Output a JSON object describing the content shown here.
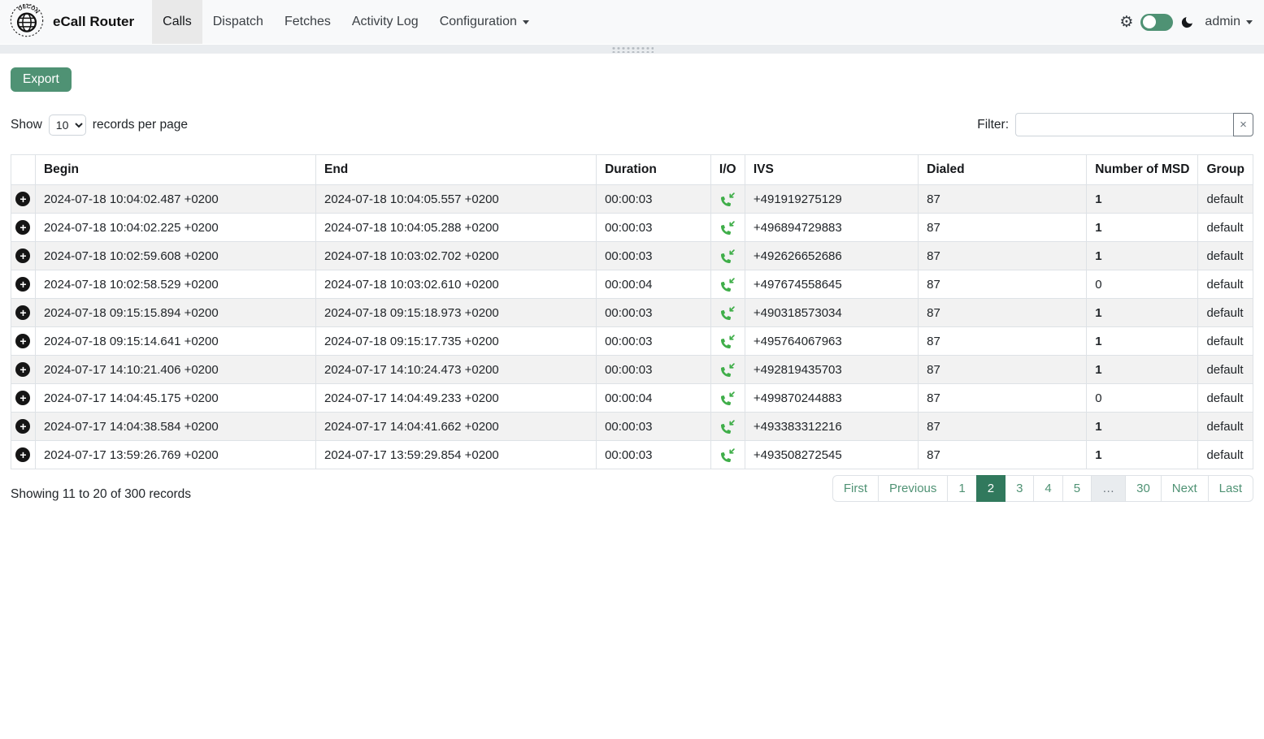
{
  "colors": {
    "accent": "#4f9274",
    "accent_dark": "#31795d",
    "phone_green": "#3fae49"
  },
  "navbar": {
    "brand": "eCall Router",
    "items": [
      {
        "label": "Calls",
        "active": true,
        "dropdown": false
      },
      {
        "label": "Dispatch",
        "active": false,
        "dropdown": false
      },
      {
        "label": "Fetches",
        "active": false,
        "dropdown": false
      },
      {
        "label": "Activity Log",
        "active": false,
        "dropdown": false
      },
      {
        "label": "Configuration",
        "active": false,
        "dropdown": true
      }
    ],
    "user": "admin"
  },
  "toolbar": {
    "export_label": "Export"
  },
  "controls": {
    "show_label": "Show",
    "page_size_selected": "10",
    "records_per_page_label": "records per page",
    "filter_label": "Filter:",
    "filter_value": "",
    "clear_symbol": "×"
  },
  "table": {
    "columns": [
      "",
      "Begin",
      "End",
      "Duration",
      "I/O",
      "IVS",
      "Dialed",
      "Number of MSD",
      "Group"
    ],
    "rows": [
      {
        "begin": "2024-07-18 10:04:02.487 +0200",
        "end": "2024-07-18 10:04:05.557 +0200",
        "duration": "00:00:03",
        "io": "incoming",
        "ivs": "+491919275129",
        "dialed": "87",
        "msd": "1",
        "msd_bold": true,
        "group": "default"
      },
      {
        "begin": "2024-07-18 10:04:02.225 +0200",
        "end": "2024-07-18 10:04:05.288 +0200",
        "duration": "00:00:03",
        "io": "incoming",
        "ivs": "+496894729883",
        "dialed": "87",
        "msd": "1",
        "msd_bold": true,
        "group": "default"
      },
      {
        "begin": "2024-07-18 10:02:59.608 +0200",
        "end": "2024-07-18 10:03:02.702 +0200",
        "duration": "00:00:03",
        "io": "incoming",
        "ivs": "+492626652686",
        "dialed": "87",
        "msd": "1",
        "msd_bold": true,
        "group": "default"
      },
      {
        "begin": "2024-07-18 10:02:58.529 +0200",
        "end": "2024-07-18 10:03:02.610 +0200",
        "duration": "00:00:04",
        "io": "incoming",
        "ivs": "+497674558645",
        "dialed": "87",
        "msd": "0",
        "msd_bold": false,
        "group": "default"
      },
      {
        "begin": "2024-07-18 09:15:15.894 +0200",
        "end": "2024-07-18 09:15:18.973 +0200",
        "duration": "00:00:03",
        "io": "incoming",
        "ivs": "+490318573034",
        "dialed": "87",
        "msd": "1",
        "msd_bold": true,
        "group": "default"
      },
      {
        "begin": "2024-07-18 09:15:14.641 +0200",
        "end": "2024-07-18 09:15:17.735 +0200",
        "duration": "00:00:03",
        "io": "incoming",
        "ivs": "+495764067963",
        "dialed": "87",
        "msd": "1",
        "msd_bold": true,
        "group": "default"
      },
      {
        "begin": "2024-07-17 14:10:21.406 +0200",
        "end": "2024-07-17 14:10:24.473 +0200",
        "duration": "00:00:03",
        "io": "incoming",
        "ivs": "+492819435703",
        "dialed": "87",
        "msd": "1",
        "msd_bold": true,
        "group": "default"
      },
      {
        "begin": "2024-07-17 14:04:45.175 +0200",
        "end": "2024-07-17 14:04:49.233 +0200",
        "duration": "00:00:04",
        "io": "incoming",
        "ivs": "+499870244883",
        "dialed": "87",
        "msd": "0",
        "msd_bold": false,
        "group": "default"
      },
      {
        "begin": "2024-07-17 14:04:38.584 +0200",
        "end": "2024-07-17 14:04:41.662 +0200",
        "duration": "00:00:03",
        "io": "incoming",
        "ivs": "+493383312216",
        "dialed": "87",
        "msd": "1",
        "msd_bold": true,
        "group": "default"
      },
      {
        "begin": "2024-07-17 13:59:26.769 +0200",
        "end": "2024-07-17 13:59:29.854 +0200",
        "duration": "00:00:03",
        "io": "incoming",
        "ivs": "+493508272545",
        "dialed": "87",
        "msd": "1",
        "msd_bold": true,
        "group": "default"
      }
    ]
  },
  "footer": {
    "showing_text": "Showing 11 to 20 of 300 records",
    "pagination": [
      {
        "label": "First",
        "active": false,
        "disabled": false
      },
      {
        "label": "Previous",
        "active": false,
        "disabled": false
      },
      {
        "label": "1",
        "active": false,
        "disabled": false
      },
      {
        "label": "2",
        "active": true,
        "disabled": false
      },
      {
        "label": "3",
        "active": false,
        "disabled": false
      },
      {
        "label": "4",
        "active": false,
        "disabled": false
      },
      {
        "label": "5",
        "active": false,
        "disabled": false
      },
      {
        "label": "…",
        "active": false,
        "disabled": true
      },
      {
        "label": "30",
        "active": false,
        "disabled": false
      },
      {
        "label": "Next",
        "active": false,
        "disabled": false
      },
      {
        "label": "Last",
        "active": false,
        "disabled": false
      }
    ]
  }
}
